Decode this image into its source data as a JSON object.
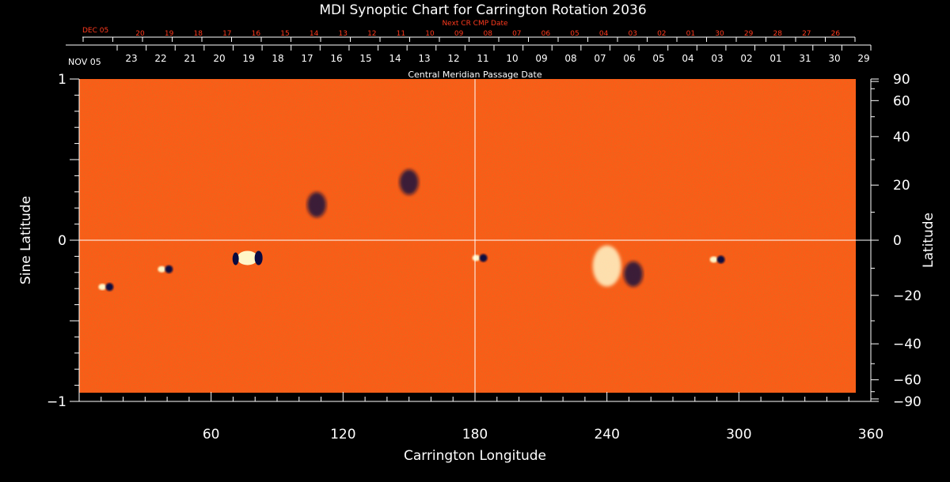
{
  "chart_data": {
    "type": "heatmap",
    "title": "MDI Synoptic Chart for Carrington Rotation 2036",
    "xlabel": "Carrington Longitude",
    "ylabel_left": "Sine Latitude",
    "ylabel_right": "Latitude",
    "xlim": [
      0,
      360
    ],
    "ylim": [
      -1,
      1
    ],
    "x_ticks": [
      60,
      120,
      180,
      240,
      300,
      360
    ],
    "y_ticks_left": [
      {
        "value": 1,
        "label": "1"
      },
      {
        "value": 0,
        "label": "0"
      },
      {
        "value": -1,
        "label": "−1"
      }
    ],
    "y_ticks_right": [
      90,
      60,
      40,
      20,
      0,
      -20,
      -40,
      -60,
      -90
    ],
    "y_ticks_right_labels": [
      "90",
      "60",
      "40",
      "20",
      "0",
      "−20",
      "−40",
      "−60",
      "−90"
    ],
    "reference_lines": {
      "longitude": 180,
      "sine_latitude": 0
    },
    "top_axis": {
      "label": "Central Meridian Passage Date",
      "start_label": "NOV 05",
      "dates": [
        "23",
        "22",
        "21",
        "20",
        "19",
        "18",
        "17",
        "16",
        "15",
        "14",
        "13",
        "12",
        "11",
        "10",
        "09",
        "08",
        "07",
        "06",
        "05",
        "04",
        "03",
        "02",
        "01",
        "31",
        "30",
        "29"
      ]
    },
    "next_axis": {
      "label": "Next CR CMP Date",
      "start_label": "DEC 05",
      "dates": [
        "20",
        "19",
        "18",
        "17",
        "16",
        "15",
        "14",
        "13",
        "12",
        "11",
        "10",
        "09",
        "08",
        "07",
        "06",
        "05",
        "04",
        "03",
        "02",
        "01",
        "30",
        "29",
        "28",
        "27",
        "26"
      ]
    },
    "active_regions": [
      {
        "lon": 12,
        "sinlat": -0.29,
        "polarity": "bipolar"
      },
      {
        "lon": 39,
        "sinlat": -0.18,
        "polarity": "bipolar"
      },
      {
        "lon": 78,
        "sinlat": -0.12,
        "polarity": "bipolar-strong"
      },
      {
        "lon": 108,
        "sinlat": 0.22,
        "polarity": "negative"
      },
      {
        "lon": 150,
        "sinlat": 0.36,
        "polarity": "negative"
      },
      {
        "lon": 182,
        "sinlat": -0.11,
        "polarity": "bipolar"
      },
      {
        "lon": 240,
        "sinlat": -0.16,
        "polarity": "positive-plage"
      },
      {
        "lon": 252,
        "sinlat": -0.21,
        "polarity": "negative"
      },
      {
        "lon": 290,
        "sinlat": -0.12,
        "polarity": "bipolar"
      }
    ],
    "colors": {
      "background": "#ff5a16",
      "positive": "#fff6c8",
      "negative": "#0a0a40",
      "grid": "#ffffff",
      "next_axis": "#ff3a1e"
    }
  }
}
